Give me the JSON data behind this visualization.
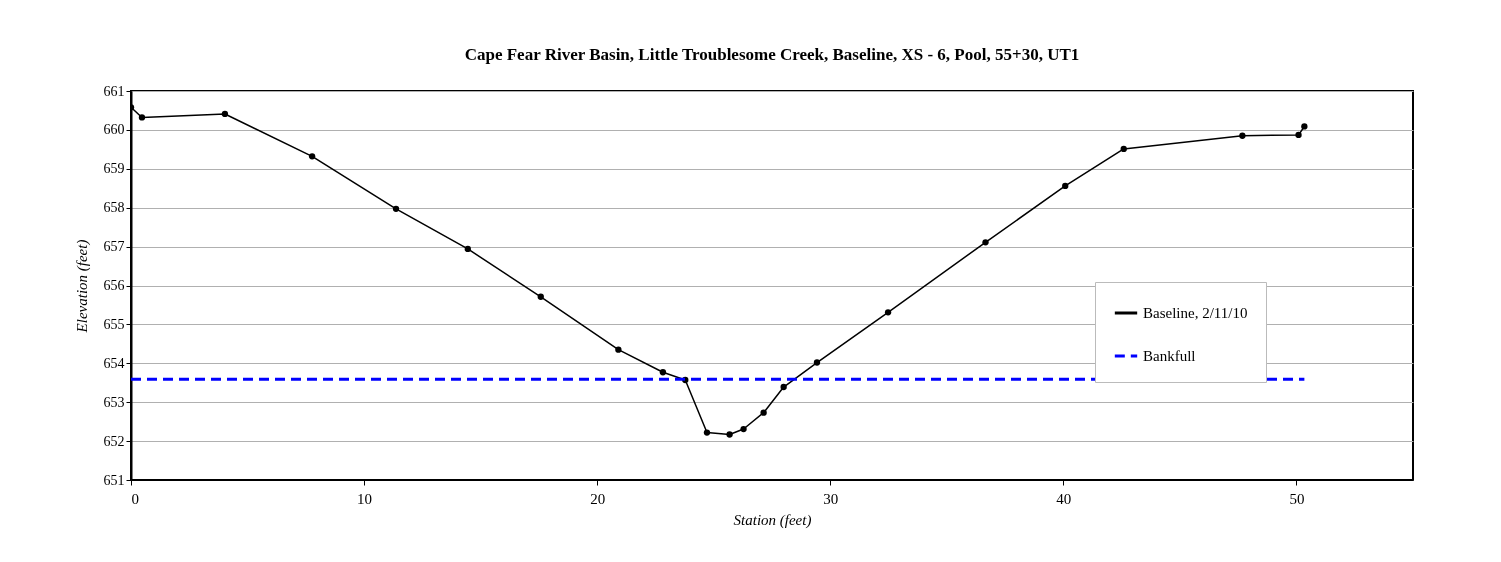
{
  "chart_data": {
    "type": "line",
    "title": "Cape Fear River Basin, Little Troublesome Creek, Baseline, XS - 6, Pool, 55+30, UT1",
    "xlabel": "Station (feet)",
    "ylabel": "Elevation (feet)",
    "series": [
      {
        "name": "Baseline, 2/11/10",
        "color": "#000000",
        "marker": "circle",
        "line_style": "solid",
        "x": [
          0,
          0.47,
          4.03,
          7.77,
          11.37,
          14.45,
          17.58,
          20.91,
          22.82,
          23.78,
          24.71,
          25.68,
          26.28,
          27.14,
          28.0,
          29.43,
          32.48,
          36.66,
          40.08,
          42.59,
          47.68,
          50.09,
          50.34
        ],
        "values": [
          660.58,
          660.32,
          660.41,
          659.32,
          657.97,
          656.94,
          655.71,
          654.35,
          653.77,
          653.57,
          652.22,
          652.17,
          652.31,
          652.73,
          653.39,
          654.02,
          655.31,
          657.11,
          658.56,
          659.51,
          659.85,
          659.87,
          660.09
        ]
      },
      {
        "name": "Bankfull",
        "color": "#0000ff",
        "marker": "none",
        "line_style": "dashed",
        "x": [
          0,
          50.34
        ],
        "values": [
          653.59,
          653.59
        ]
      }
    ],
    "xlim": [
      0,
      55
    ],
    "xticks": [
      0,
      10,
      20,
      30,
      40,
      50
    ],
    "ylim": [
      651,
      661
    ],
    "yticks": [
      651,
      652,
      653,
      654,
      655,
      656,
      657,
      658,
      659,
      660,
      661
    ],
    "grid": "y",
    "legend": "right"
  }
}
